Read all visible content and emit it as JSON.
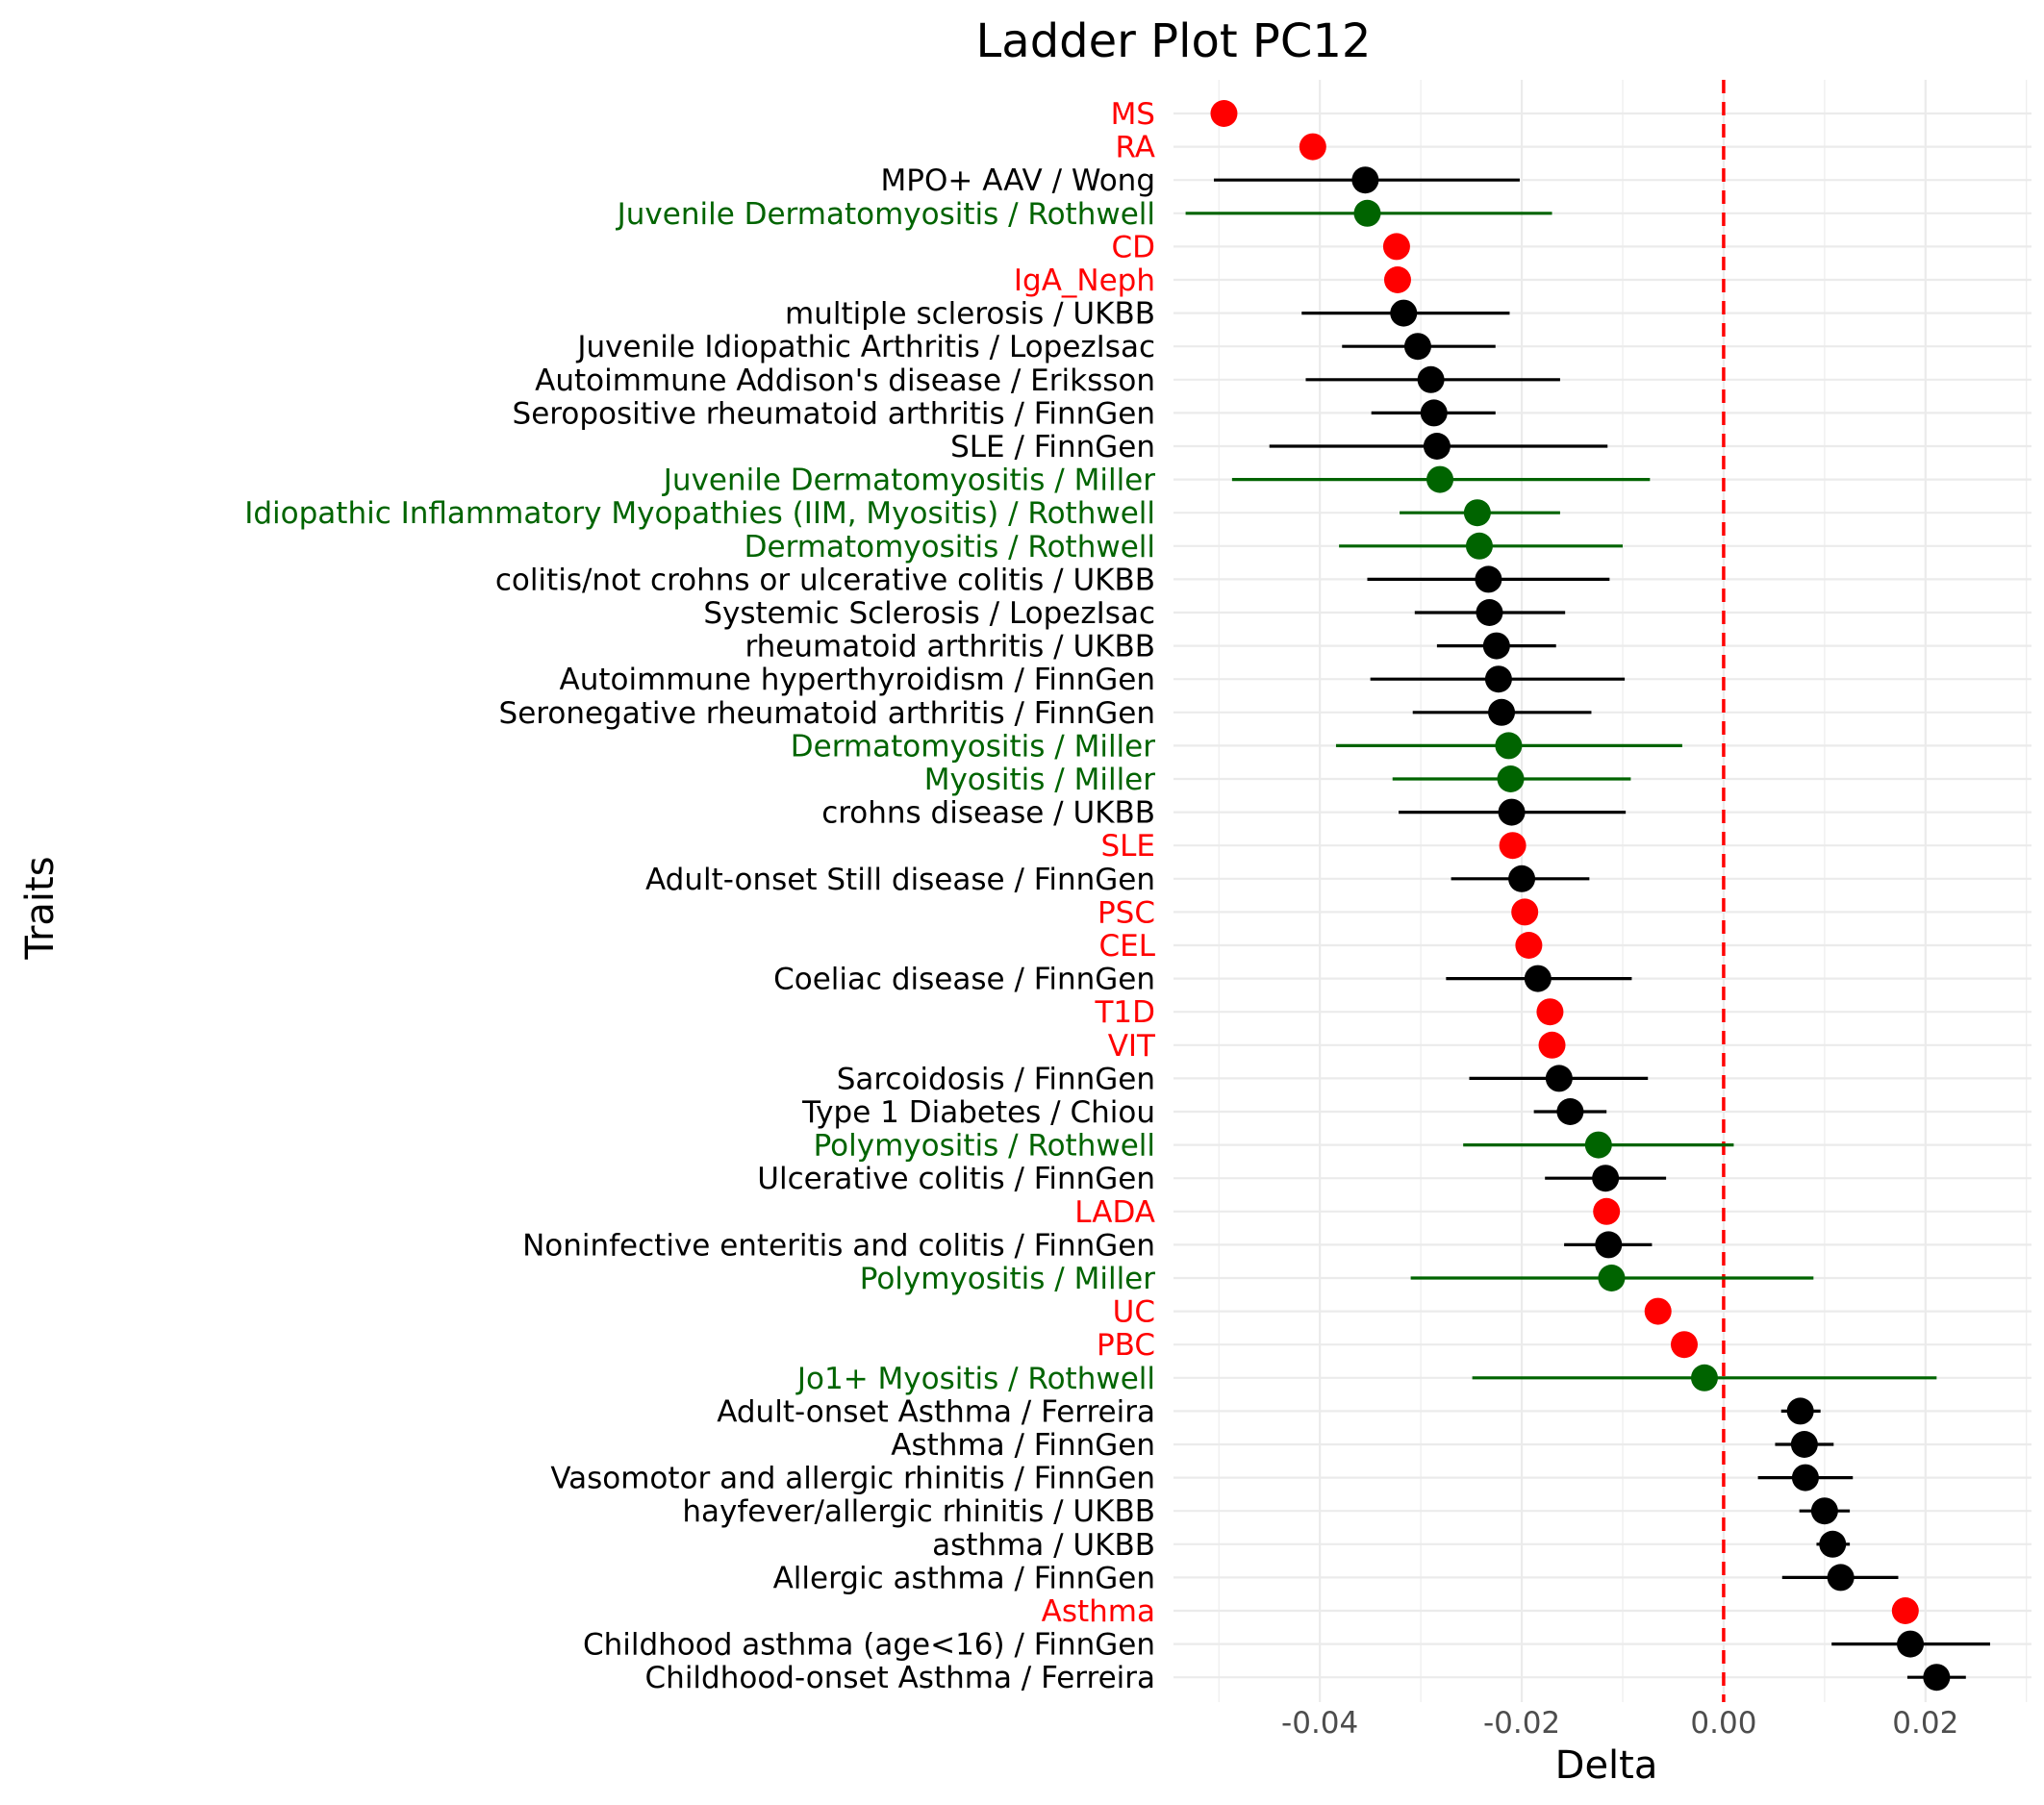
{
  "chart_data": {
    "type": "scatter",
    "title": "Ladder Plot PC12",
    "xlabel": "Delta",
    "ylabel": "Traits",
    "xlim": [
      -0.0545,
      0.0305
    ],
    "x_ticks": [
      -0.04,
      -0.02,
      0.0,
      0.02
    ],
    "x_tick_labels": [
      "-0.04",
      "-0.02",
      "0.00",
      "0.02"
    ],
    "reference_line": {
      "x": 0,
      "style": "dashed",
      "color": "#ff0000"
    },
    "grid": true,
    "colors": {
      "basis": "#ff0000",
      "myositis": "#006400",
      "other": "#000000"
    },
    "points": [
      {
        "label": "MS",
        "delta": -0.0495,
        "group": "basis"
      },
      {
        "label": "RA",
        "delta": -0.0407,
        "group": "basis"
      },
      {
        "label": "MPO+ AAV / Wong",
        "delta": -0.0355,
        "lo": -0.0505,
        "hi": -0.0202,
        "group": "other"
      },
      {
        "label": "Juvenile Dermatomyositis / Rothwell",
        "delta": -0.0353,
        "lo": -0.0533,
        "hi": -0.017,
        "group": "myositis"
      },
      {
        "label": "CD",
        "delta": -0.0324,
        "group": "basis"
      },
      {
        "label": "IgA_Neph",
        "delta": -0.0323,
        "group": "basis"
      },
      {
        "label": "multiple sclerosis / UKBB",
        "delta": -0.0317,
        "lo": -0.0418,
        "hi": -0.0212,
        "group": "other"
      },
      {
        "label": "Juvenile Idiopathic Arthritis / LopezIsac",
        "delta": -0.0303,
        "lo": -0.0378,
        "hi": -0.0226,
        "group": "other"
      },
      {
        "label": "Autoimmune Addison's disease / Eriksson",
        "delta": -0.029,
        "lo": -0.0414,
        "hi": -0.0162,
        "group": "other"
      },
      {
        "label": "Seropositive rheumatoid arthritis / FinnGen",
        "delta": -0.0287,
        "lo": -0.0349,
        "hi": -0.0226,
        "group": "other"
      },
      {
        "label": "SLE / FinnGen",
        "delta": -0.0284,
        "lo": -0.045,
        "hi": -0.0115,
        "group": "other"
      },
      {
        "label": "Juvenile Dermatomyositis / Miller",
        "delta": -0.0281,
        "lo": -0.0487,
        "hi": -0.0073,
        "group": "myositis"
      },
      {
        "label": "Idiopathic Inflammatory Myopathies (IIM, Myositis) / Rothwell",
        "delta": -0.0244,
        "lo": -0.0321,
        "hi": -0.0162,
        "group": "myositis"
      },
      {
        "label": "Dermatomyositis / Rothwell",
        "delta": -0.0242,
        "lo": -0.0381,
        "hi": -0.01,
        "group": "myositis"
      },
      {
        "label": "colitis/not crohns or ulcerative colitis / UKBB",
        "delta": -0.0233,
        "lo": -0.0353,
        "hi": -0.0113,
        "group": "other"
      },
      {
        "label": "Systemic Sclerosis / LopezIsac",
        "delta": -0.0232,
        "lo": -0.0306,
        "hi": -0.0157,
        "group": "other"
      },
      {
        "label": "rheumatoid arthritis / UKBB",
        "delta": -0.0225,
        "lo": -0.0284,
        "hi": -0.0166,
        "group": "other"
      },
      {
        "label": "Autoimmune hyperthyroidism / FinnGen",
        "delta": -0.0223,
        "lo": -0.035,
        "hi": -0.0098,
        "group": "other"
      },
      {
        "label": "Seronegative rheumatoid arthritis / FinnGen",
        "delta": -0.022,
        "lo": -0.0308,
        "hi": -0.0131,
        "group": "other"
      },
      {
        "label": "Dermatomyositis / Miller",
        "delta": -0.0213,
        "lo": -0.0384,
        "hi": -0.0041,
        "group": "myositis"
      },
      {
        "label": "Myositis / Miller",
        "delta": -0.0211,
        "lo": -0.0328,
        "hi": -0.0092,
        "group": "myositis"
      },
      {
        "label": "crohns disease / UKBB",
        "delta": -0.021,
        "lo": -0.0322,
        "hi": -0.0097,
        "group": "other"
      },
      {
        "label": "SLE",
        "delta": -0.0209,
        "group": "basis"
      },
      {
        "label": "Adult-onset Still disease / FinnGen",
        "delta": -0.02,
        "lo": -0.027,
        "hi": -0.0133,
        "group": "other"
      },
      {
        "label": "PSC",
        "delta": -0.0197,
        "group": "basis"
      },
      {
        "label": "CEL",
        "delta": -0.0193,
        "group": "basis"
      },
      {
        "label": "Coeliac disease / FinnGen",
        "delta": -0.0184,
        "lo": -0.0275,
        "hi": -0.0091,
        "group": "other"
      },
      {
        "label": "T1D",
        "delta": -0.0172,
        "group": "basis"
      },
      {
        "label": "VIT",
        "delta": -0.017,
        "group": "basis"
      },
      {
        "label": "Sarcoidosis / FinnGen",
        "delta": -0.0163,
        "lo": -0.0252,
        "hi": -0.0075,
        "group": "other"
      },
      {
        "label": "Type 1 Diabetes / Chiou",
        "delta": -0.0152,
        "lo": -0.0188,
        "hi": -0.0116,
        "group": "other"
      },
      {
        "label": "Polymyositis / Rothwell",
        "delta": -0.0124,
        "lo": -0.0258,
        "hi": 0.001,
        "group": "myositis"
      },
      {
        "label": "Ulcerative colitis / FinnGen",
        "delta": -0.0117,
        "lo": -0.0177,
        "hi": -0.0057,
        "group": "other"
      },
      {
        "label": "LADA",
        "delta": -0.0116,
        "group": "basis"
      },
      {
        "label": "Noninfective enteritis and colitis / FinnGen",
        "delta": -0.0114,
        "lo": -0.0158,
        "hi": -0.0071,
        "group": "other"
      },
      {
        "label": "Polymyositis / Miller",
        "delta": -0.0111,
        "lo": -0.031,
        "hi": 0.0089,
        "group": "myositis"
      },
      {
        "label": "UC",
        "delta": -0.0065,
        "group": "basis"
      },
      {
        "label": "PBC",
        "delta": -0.0039,
        "group": "basis"
      },
      {
        "label": "Jo1+ Myositis / Rothwell",
        "delta": -0.0019,
        "lo": -0.0249,
        "hi": 0.0211,
        "group": "myositis"
      },
      {
        "label": "Adult-onset Asthma / Ferreira",
        "delta": 0.0076,
        "lo": 0.0057,
        "hi": 0.0096,
        "group": "other"
      },
      {
        "label": "Asthma / FinnGen",
        "delta": 0.008,
        "lo": 0.0051,
        "hi": 0.0109,
        "group": "other"
      },
      {
        "label": "Vasomotor and allergic rhinitis / FinnGen",
        "delta": 0.0081,
        "lo": 0.0034,
        "hi": 0.0128,
        "group": "other"
      },
      {
        "label": "hayfever/allergic rhinitis / UKBB",
        "delta": 0.01,
        "lo": 0.0075,
        "hi": 0.0125,
        "group": "other"
      },
      {
        "label": "asthma / UKBB",
        "delta": 0.0108,
        "lo": 0.0092,
        "hi": 0.0125,
        "group": "other"
      },
      {
        "label": "Allergic asthma / FinnGen",
        "delta": 0.0116,
        "lo": 0.0058,
        "hi": 0.0173,
        "group": "other"
      },
      {
        "label": "Asthma",
        "delta": 0.018,
        "group": "basis"
      },
      {
        "label": "Childhood asthma (age<16) / FinnGen",
        "delta": 0.0185,
        "lo": 0.0107,
        "hi": 0.0264,
        "group": "other"
      },
      {
        "label": "Childhood-onset Asthma / Ferreira",
        "delta": 0.0211,
        "lo": 0.0182,
        "hi": 0.024,
        "group": "other"
      }
    ]
  }
}
